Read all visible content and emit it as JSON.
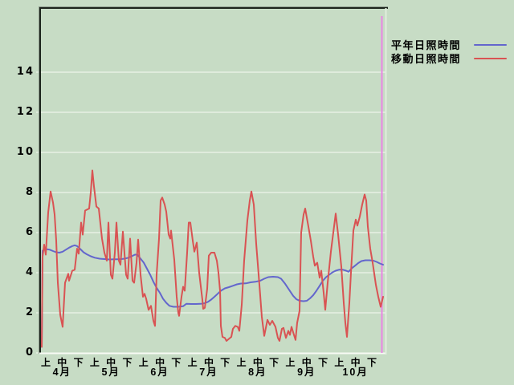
{
  "app": {
    "background_color": "#c7dcc5",
    "grid_color": "#f7faf4",
    "frame_dark_color": "#1c241c",
    "frame_outer_color": "#8d9c8d",
    "frame_light_color": "#dfeddc"
  },
  "legend": {
    "items": [
      {
        "label": "平年日照時間",
        "color": "#6366cd"
      },
      {
        "label": "移動日照時間",
        "color": "#d95353"
      }
    ]
  },
  "chart_data": {
    "type": "line",
    "title": "",
    "xlabel": "",
    "ylabel": "",
    "ylim": [
      0,
      17.2
    ],
    "y_ticks": [
      0,
      2,
      4,
      6,
      8,
      10,
      12,
      14
    ],
    "grid": true,
    "legend_position": "outside-top-right",
    "x_months": [
      "4月",
      "5月",
      "6月",
      "7月",
      "8月",
      "9月",
      "10月"
    ],
    "x_periods_per_month": [
      "上",
      "中",
      "下"
    ],
    "points_format": "[x_px (52 = axis / start of April, 477 = last datum in late October), sunshine_hours]",
    "end_marker": {
      "color": "#e986e3",
      "x": 475
    },
    "series": [
      {
        "name": "平年日照時間",
        "color": "#6366cd",
        "points": [
          [
            52,
            0.3
          ],
          [
            53,
            5.1
          ],
          [
            57,
            5.18
          ],
          [
            62,
            5.15
          ],
          [
            66,
            5.08
          ],
          [
            70,
            5.02
          ],
          [
            74,
            5.0
          ],
          [
            78,
            5.05
          ],
          [
            82,
            5.15
          ],
          [
            86,
            5.25
          ],
          [
            90,
            5.33
          ],
          [
            93,
            5.37
          ],
          [
            96,
            5.33
          ],
          [
            100,
            5.18
          ],
          [
            104,
            5.02
          ],
          [
            108,
            4.92
          ],
          [
            113,
            4.82
          ],
          [
            118,
            4.75
          ],
          [
            124,
            4.7
          ],
          [
            130,
            4.68
          ],
          [
            136,
            4.66
          ],
          [
            142,
            4.67
          ],
          [
            149,
            4.67
          ],
          [
            155,
            4.7
          ],
          [
            160,
            4.75
          ],
          [
            164,
            4.82
          ],
          [
            168,
            4.9
          ],
          [
            171,
            4.9
          ],
          [
            175,
            4.7
          ],
          [
            179,
            4.5
          ],
          [
            183,
            4.2
          ],
          [
            187,
            3.9
          ],
          [
            191,
            3.55
          ],
          [
            195,
            3.25
          ],
          [
            199,
            3.0
          ],
          [
            203,
            2.7
          ],
          [
            207,
            2.5
          ],
          [
            211,
            2.35
          ],
          [
            216,
            2.3
          ],
          [
            222,
            2.3
          ],
          [
            228,
            2.33
          ],
          [
            232,
            2.45
          ],
          [
            238,
            2.44
          ],
          [
            244,
            2.44
          ],
          [
            250,
            2.45
          ],
          [
            255,
            2.48
          ],
          [
            259,
            2.55
          ],
          [
            263,
            2.66
          ],
          [
            267,
            2.8
          ],
          [
            271,
            2.95
          ],
          [
            275,
            3.1
          ],
          [
            280,
            3.22
          ],
          [
            285,
            3.28
          ],
          [
            290,
            3.35
          ],
          [
            295,
            3.42
          ],
          [
            300,
            3.46
          ],
          [
            306,
            3.47
          ],
          [
            312,
            3.52
          ],
          [
            318,
            3.55
          ],
          [
            324,
            3.6
          ],
          [
            329,
            3.7
          ],
          [
            334,
            3.78
          ],
          [
            340,
            3.8
          ],
          [
            346,
            3.78
          ],
          [
            350,
            3.7
          ],
          [
            355,
            3.45
          ],
          [
            360,
            3.15
          ],
          [
            365,
            2.85
          ],
          [
            369,
            2.68
          ],
          [
            373,
            2.6
          ],
          [
            378,
            2.58
          ],
          [
            382,
            2.6
          ],
          [
            386,
            2.72
          ],
          [
            390,
            2.88
          ],
          [
            394,
            3.1
          ],
          [
            398,
            3.35
          ],
          [
            402,
            3.6
          ],
          [
            406,
            3.78
          ],
          [
            410,
            3.9
          ],
          [
            414,
            4.02
          ],
          [
            418,
            4.1
          ],
          [
            422,
            4.15
          ],
          [
            427,
            4.15
          ],
          [
            431,
            4.1
          ],
          [
            434,
            4.05
          ],
          [
            438,
            4.22
          ],
          [
            442,
            4.35
          ],
          [
            446,
            4.48
          ],
          [
            450,
            4.58
          ],
          [
            455,
            4.62
          ],
          [
            460,
            4.62
          ],
          [
            465,
            4.6
          ],
          [
            469,
            4.54
          ],
          [
            473,
            4.46
          ],
          [
            477,
            4.4
          ]
        ]
      },
      {
        "name": "移動日照時間",
        "color": "#d95353",
        "points": [
          [
            52,
            0.3
          ],
          [
            53,
            4.8
          ],
          [
            55,
            5.4
          ],
          [
            57,
            4.9
          ],
          [
            60,
            7.0
          ],
          [
            63,
            8.05
          ],
          [
            66,
            7.5
          ],
          [
            68,
            6.9
          ],
          [
            70,
            5.6
          ],
          [
            72,
            3.5
          ],
          [
            75,
            1.9
          ],
          [
            78,
            1.3
          ],
          [
            81,
            3.5
          ],
          [
            85,
            3.95
          ],
          [
            86,
            3.6
          ],
          [
            90,
            4.1
          ],
          [
            93,
            4.15
          ],
          [
            96,
            5.2
          ],
          [
            98,
            4.95
          ],
          [
            101,
            6.5
          ],
          [
            103,
            5.9
          ],
          [
            106,
            7.1
          ],
          [
            111,
            7.2
          ],
          [
            113,
            8.0
          ],
          [
            115,
            9.1
          ],
          [
            117,
            8.3
          ],
          [
            120,
            7.3
          ],
          [
            123,
            7.2
          ],
          [
            127,
            5.7
          ],
          [
            130,
            5.0
          ],
          [
            133,
            4.6
          ],
          [
            135,
            6.5
          ],
          [
            138,
            3.9
          ],
          [
            140,
            3.7
          ],
          [
            143,
            5.0
          ],
          [
            145,
            6.5
          ],
          [
            148,
            4.6
          ],
          [
            150,
            4.4
          ],
          [
            153,
            6.05
          ],
          [
            157,
            3.9
          ],
          [
            159,
            3.7
          ],
          [
            162,
            5.7
          ],
          [
            165,
            3.6
          ],
          [
            167,
            3.5
          ],
          [
            170,
            4.5
          ],
          [
            172,
            5.65
          ],
          [
            175,
            3.9
          ],
          [
            178,
            2.8
          ],
          [
            180,
            2.95
          ],
          [
            182,
            2.7
          ],
          [
            185,
            2.15
          ],
          [
            188,
            2.35
          ],
          [
            191,
            1.6
          ],
          [
            193,
            1.35
          ],
          [
            195,
            3.9
          ],
          [
            198,
            5.7
          ],
          [
            200,
            7.6
          ],
          [
            202,
            7.75
          ],
          [
            205,
            7.4
          ],
          [
            207,
            7.05
          ],
          [
            210,
            5.9
          ],
          [
            212,
            5.7
          ],
          [
            213,
            6.1
          ],
          [
            217,
            4.65
          ],
          [
            220,
            2.8
          ],
          [
            222,
            2.0
          ],
          [
            223,
            1.85
          ],
          [
            226,
            2.8
          ],
          [
            228,
            3.3
          ],
          [
            230,
            3.1
          ],
          [
            233,
            5.0
          ],
          [
            235,
            6.5
          ],
          [
            237,
            6.5
          ],
          [
            240,
            5.6
          ],
          [
            242,
            5.05
          ],
          [
            245,
            5.5
          ],
          [
            248,
            4.0
          ],
          [
            252,
            2.65
          ],
          [
            253,
            2.2
          ],
          [
            255,
            2.25
          ],
          [
            258,
            3.2
          ],
          [
            260,
            4.85
          ],
          [
            263,
            5.0
          ],
          [
            267,
            5.0
          ],
          [
            270,
            4.6
          ],
          [
            272,
            4.0
          ],
          [
            274,
            3.1
          ],
          [
            275,
            1.35
          ],
          [
            277,
            0.8
          ],
          [
            280,
            0.75
          ],
          [
            282,
            0.6
          ],
          [
            285,
            0.7
          ],
          [
            288,
            0.8
          ],
          [
            290,
            1.2
          ],
          [
            293,
            1.35
          ],
          [
            296,
            1.3
          ],
          [
            298,
            1.1
          ],
          [
            301,
            2.4
          ],
          [
            304,
            4.6
          ],
          [
            308,
            6.6
          ],
          [
            311,
            7.6
          ],
          [
            313,
            8.05
          ],
          [
            316,
            7.4
          ],
          [
            319,
            5.45
          ],
          [
            323,
            3.4
          ],
          [
            326,
            1.8
          ],
          [
            329,
            0.85
          ],
          [
            333,
            1.65
          ],
          [
            336,
            1.4
          ],
          [
            339,
            1.6
          ],
          [
            343,
            1.3
          ],
          [
            346,
            0.75
          ],
          [
            348,
            0.6
          ],
          [
            351,
            1.2
          ],
          [
            353,
            1.25
          ],
          [
            356,
            0.75
          ],
          [
            359,
            1.1
          ],
          [
            361,
            0.9
          ],
          [
            363,
            1.3
          ],
          [
            366,
            0.9
          ],
          [
            368,
            0.65
          ],
          [
            370,
            1.5
          ],
          [
            373,
            2.1
          ],
          [
            375,
            6.0
          ],
          [
            378,
            6.9
          ],
          [
            380,
            7.2
          ],
          [
            384,
            6.3
          ],
          [
            387,
            5.6
          ],
          [
            390,
            4.8
          ],
          [
            392,
            4.35
          ],
          [
            395,
            4.5
          ],
          [
            398,
            3.75
          ],
          [
            400,
            4.1
          ],
          [
            403,
            3.0
          ],
          [
            405,
            2.15
          ],
          [
            408,
            3.5
          ],
          [
            412,
            5.05
          ],
          [
            415,
            6.0
          ],
          [
            418,
            6.95
          ],
          [
            421,
            5.9
          ],
          [
            425,
            4.3
          ],
          [
            428,
            2.5
          ],
          [
            430,
            1.5
          ],
          [
            432,
            0.8
          ],
          [
            435,
            2.5
          ],
          [
            437,
            4.0
          ],
          [
            440,
            6.1
          ],
          [
            443,
            6.65
          ],
          [
            445,
            6.35
          ],
          [
            448,
            6.8
          ],
          [
            451,
            7.4
          ],
          [
            454,
            7.9
          ],
          [
            456,
            7.6
          ],
          [
            458,
            6.3
          ],
          [
            461,
            5.2
          ],
          [
            464,
            4.5
          ],
          [
            468,
            3.4
          ],
          [
            471,
            2.8
          ],
          [
            474,
            2.3
          ],
          [
            477,
            2.8
          ]
        ]
      }
    ]
  }
}
